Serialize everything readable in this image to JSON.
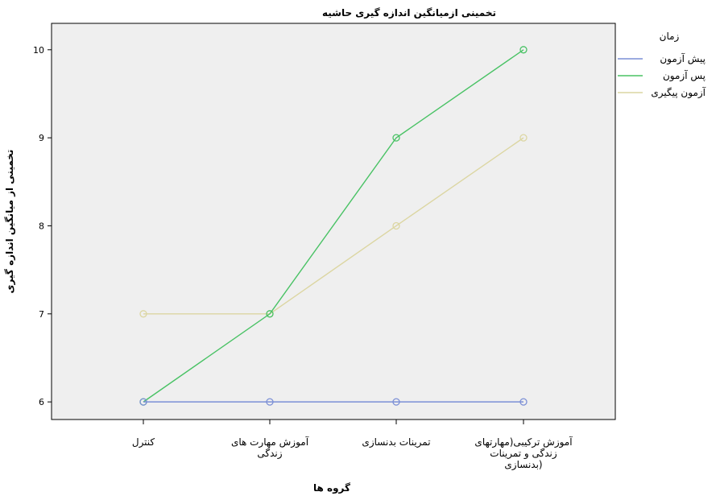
{
  "chart_data": {
    "type": "line",
    "title": "تخمینی ازمیانگین اندازه گیری حاشیه",
    "xlabel": "گروه ها",
    "ylabel": "تخمینی از میانگین اندازه گیری",
    "categories": [
      [
        "کنترل"
      ],
      [
        "آموزش مهارت های",
        "زندگی"
      ],
      [
        "تمرینات بدنسازی"
      ],
      [
        "آموزش ترکیبی(مهارتهای",
        "زندگی و تمرینات",
        "بدنسازی)"
      ]
    ],
    "y_ticks": [
      "6",
      "7",
      "8",
      "9",
      "10"
    ],
    "ylim": [
      5.8,
      10.3
    ],
    "grid": false,
    "legend": {
      "title": "زمان",
      "position": "right"
    },
    "series": [
      {
        "name": "پیش آزمون",
        "color": "#7b8fd6",
        "values": [
          6,
          6,
          6,
          6
        ]
      },
      {
        "name": "پس آزمون",
        "color": "#48c264",
        "values": [
          6,
          7,
          9,
          10
        ]
      },
      {
        "name": "آزمون پیگیری",
        "color": "#dcd6a2",
        "values": [
          7,
          7,
          8,
          9
        ]
      }
    ]
  }
}
